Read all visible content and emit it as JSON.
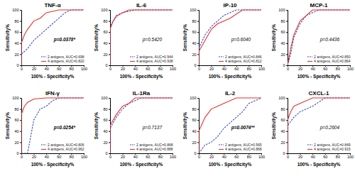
{
  "chart_data": [
    {
      "type": "line",
      "title": "TNF-α",
      "x_label": "100% - Specificity%",
      "y_label": "Sensitivity%",
      "annotation": "p=0.0378*",
      "xlim": [
        0,
        100
      ],
      "ylim": [
        0,
        100
      ],
      "xticks": [
        0,
        20,
        40,
        60,
        80,
        100
      ],
      "yticks": [
        0,
        20,
        40,
        60,
        80,
        100
      ],
      "legend": "lower right",
      "series": [
        {
          "name": "2 antigens, AUC=0.698",
          "color": "#3b4cc0",
          "line_style": "dashed",
          "x": [
            0,
            0,
            10,
            20,
            30,
            40,
            50,
            60,
            70,
            80,
            100
          ],
          "values": [
            0,
            20,
            30,
            45,
            55,
            65,
            75,
            85,
            95,
            100,
            100
          ]
        },
        {
          "name": "4 antigens, AUC=0.820",
          "color": "#e8302a",
          "line_style": "solid",
          "x": [
            0,
            0,
            5,
            10,
            20,
            30,
            40,
            60,
            100
          ],
          "values": [
            0,
            40,
            55,
            65,
            80,
            85,
            95,
            100,
            100
          ]
        }
      ]
    },
    {
      "type": "line",
      "title": "IL-6",
      "x_label": "100% - Specificity%",
      "y_label": "Sensitivity%",
      "annotation": "p=0.5420",
      "xlim": [
        0,
        100
      ],
      "ylim": [
        0,
        100
      ],
      "xticks": [
        0,
        20,
        40,
        60,
        80,
        100
      ],
      "yticks": [
        0,
        20,
        40,
        60,
        80,
        100
      ],
      "legend": "lower right",
      "series": [
        {
          "name": "2 antigens, AUC=0.944",
          "color": "#3b4cc0",
          "line_style": "dashed",
          "x": [
            0,
            0,
            5,
            10,
            20,
            40,
            100
          ],
          "values": [
            0,
            70,
            80,
            90,
            95,
            100,
            100
          ]
        },
        {
          "name": "4 antigens, AUC=0.938",
          "color": "#e8302a",
          "line_style": "solid",
          "x": [
            0,
            0,
            5,
            10,
            20,
            30,
            100
          ],
          "values": [
            0,
            65,
            80,
            88,
            95,
            100,
            100
          ]
        }
      ]
    },
    {
      "type": "line",
      "title": "IP-10",
      "x_label": "100% - Specificity%",
      "y_label": "Sensitivity%",
      "annotation": "p=0.6040",
      "xlim": [
        0,
        100
      ],
      "ylim": [
        0,
        100
      ],
      "xticks": [
        0,
        20,
        40,
        60,
        80,
        100
      ],
      "yticks": [
        0,
        20,
        40,
        60,
        80,
        100
      ],
      "legend": "lower right",
      "series": [
        {
          "name": "2 antigens, AUC=0.846",
          "color": "#3b4cc0",
          "line_style": "dashed",
          "x": [
            0,
            0,
            10,
            20,
            30,
            40,
            60,
            100
          ],
          "values": [
            0,
            30,
            55,
            70,
            80,
            90,
            100,
            100
          ]
        },
        {
          "name": "4 antigens, AUC=0.812",
          "color": "#e8302a",
          "line_style": "solid",
          "x": [
            0,
            0,
            10,
            20,
            30,
            50,
            70,
            100
          ],
          "values": [
            0,
            25,
            45,
            65,
            75,
            85,
            100,
            100
          ]
        }
      ]
    },
    {
      "type": "line",
      "title": "MCP-1",
      "x_label": "100% - Specificity%",
      "y_label": "Sensitivity%",
      "annotation": "p=0.4436",
      "xlim": [
        0,
        100
      ],
      "ylim": [
        0,
        100
      ],
      "xticks": [
        0,
        20,
        40,
        60,
        80,
        100
      ],
      "yticks": [
        0,
        20,
        40,
        60,
        80,
        100
      ],
      "legend": "lower right",
      "series": [
        {
          "name": "2 antigens, AUC=0.850",
          "color": "#3b4cc0",
          "line_style": "dashed",
          "x": [
            0,
            5,
            10,
            20,
            30,
            50,
            100
          ],
          "values": [
            0,
            20,
            50,
            75,
            90,
            100,
            100
          ]
        },
        {
          "name": "4 antigens, AUC=0.864",
          "color": "#e8302a",
          "line_style": "solid",
          "x": [
            0,
            5,
            10,
            20,
            30,
            40,
            100
          ],
          "values": [
            0,
            30,
            55,
            80,
            90,
            100,
            100
          ]
        }
      ]
    },
    {
      "type": "line",
      "title": "IFN-γ",
      "x_label": "100% - Specificity%",
      "y_label": "Sensitivity%",
      "annotation": "p=0.0254*",
      "xlim": [
        0,
        100
      ],
      "ylim": [
        0,
        100
      ],
      "xticks": [
        0,
        20,
        40,
        60,
        80,
        100
      ],
      "yticks": [
        0,
        20,
        40,
        60,
        80,
        100
      ],
      "legend": "lower right",
      "series": [
        {
          "name": "2 antigens, AUC=0.806",
          "color": "#3b4cc0",
          "line_style": "dashed",
          "x": [
            0,
            10,
            20,
            30,
            40,
            50,
            60,
            100
          ],
          "values": [
            0,
            0,
            60,
            80,
            85,
            95,
            100,
            100
          ]
        },
        {
          "name": "4 antigens, AUC=0.962",
          "color": "#e8302a",
          "line_style": "solid",
          "x": [
            0,
            0,
            5,
            10,
            20,
            40,
            100
          ],
          "values": [
            0,
            70,
            85,
            92,
            98,
            100,
            100
          ]
        }
      ]
    },
    {
      "type": "line",
      "title": "IL-1Ra",
      "x_label": "100% - Specificity%",
      "y_label": "Sensitivity%",
      "annotation": "p=0.7137",
      "xlim": [
        0,
        100
      ],
      "ylim": [
        0,
        100
      ],
      "xticks": [
        0,
        20,
        40,
        60,
        80,
        100
      ],
      "yticks": [
        0,
        20,
        40,
        60,
        80,
        100
      ],
      "legend": "lower right",
      "series": [
        {
          "name": "2 antigens, AUC=0.868",
          "color": "#3b4cc0",
          "line_style": "dashed",
          "x": [
            0,
            0,
            10,
            20,
            30,
            50,
            100
          ],
          "values": [
            0,
            45,
            65,
            80,
            90,
            100,
            100
          ]
        },
        {
          "name": "4 antigens, AUC=0.888",
          "color": "#e8302a",
          "line_style": "solid",
          "x": [
            0,
            0,
            10,
            20,
            30,
            40,
            100
          ],
          "values": [
            0,
            50,
            70,
            85,
            90,
            100,
            100
          ]
        }
      ]
    },
    {
      "type": "line",
      "title": "IL-2",
      "x_label": "100% - Specificity%",
      "y_label": "Sensitivity%",
      "annotation": "p=0.0074**",
      "xlim": [
        0,
        100
      ],
      "ylim": [
        0,
        100
      ],
      "xticks": [
        0,
        20,
        40,
        60,
        80,
        100
      ],
      "yticks": [
        0,
        20,
        40,
        60,
        80,
        100
      ],
      "legend": "lower right",
      "series": [
        {
          "name": "2 antigens, AUC=0.565",
          "color": "#3b4cc0",
          "line_style": "dashed",
          "x": [
            0,
            10,
            20,
            30,
            40,
            50,
            60,
            70,
            80,
            100
          ],
          "values": [
            0,
            15,
            20,
            30,
            45,
            55,
            65,
            75,
            90,
            100
          ]
        },
        {
          "name": "4 antigens, AUC=0.868",
          "color": "#e8302a",
          "line_style": "solid",
          "x": [
            0,
            0,
            10,
            20,
            30,
            40,
            60,
            100
          ],
          "values": [
            0,
            40,
            65,
            80,
            85,
            90,
            100,
            100
          ]
        }
      ]
    },
    {
      "type": "line",
      "title": "CXCL-1",
      "x_label": "100% - Specificity%",
      "y_label": "Sensitivity%",
      "annotation": "p=0.2604",
      "xlim": [
        0,
        100
      ],
      "ylim": [
        0,
        100
      ],
      "xticks": [
        0,
        20,
        40,
        60,
        80,
        100
      ],
      "yticks": [
        0,
        20,
        40,
        60,
        80,
        100
      ],
      "legend": "lower right",
      "series": [
        {
          "name": "2 antigens, AUC=0.849",
          "color": "#3b4cc0",
          "line_style": "dashed",
          "x": [
            0,
            0,
            10,
            20,
            40,
            60,
            100
          ],
          "values": [
            0,
            50,
            65,
            75,
            85,
            100,
            100
          ]
        },
        {
          "name": "4 antigens, AUC=0.915",
          "color": "#e8302a",
          "line_style": "solid",
          "x": [
            0,
            0,
            5,
            10,
            20,
            40,
            100
          ],
          "values": [
            0,
            60,
            75,
            85,
            90,
            100,
            100
          ]
        }
      ]
    }
  ]
}
